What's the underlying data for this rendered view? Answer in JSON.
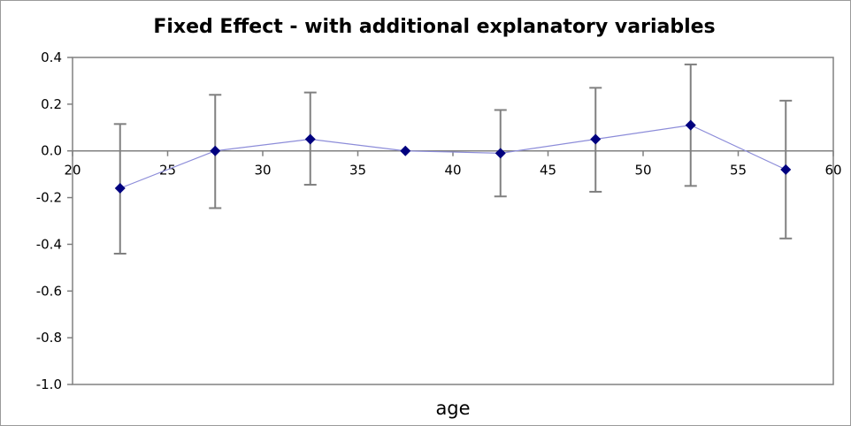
{
  "chart_data": {
    "type": "scatter",
    "title": "Fixed Effect - with additional explanatory variables",
    "xlabel": "age",
    "ylabel": "",
    "xlim": [
      20,
      60
    ],
    "ylim": [
      -1.0,
      0.4
    ],
    "xticks": [
      "20",
      "25",
      "30",
      "35",
      "40",
      "45",
      "50",
      "55",
      "60"
    ],
    "yticks": [
      "0.4",
      "0.2",
      "0.0",
      "-0.2",
      "-0.4",
      "-0.6",
      "-0.8",
      "-1.0"
    ],
    "grid": false,
    "legend": "none",
    "series": [
      {
        "x": [
          22.5,
          27.5,
          32.5,
          37.5,
          42.5,
          47.5,
          52.5,
          57.5
        ],
        "y": [
          -0.16,
          0.0,
          0.05,
          0.0,
          -0.01,
          0.05,
          0.11,
          -0.08
        ],
        "err_low": [
          -0.44,
          -0.245,
          -0.145,
          0.0,
          -0.195,
          -0.175,
          -0.15,
          -0.375
        ],
        "err_high": [
          0.115,
          0.24,
          0.25,
          0.0,
          0.175,
          0.27,
          0.37,
          0.215
        ],
        "color": "#00007f",
        "line_color": "#8c8cd9"
      }
    ],
    "error_bar_color": "#808080",
    "axis_color": "#808080"
  }
}
